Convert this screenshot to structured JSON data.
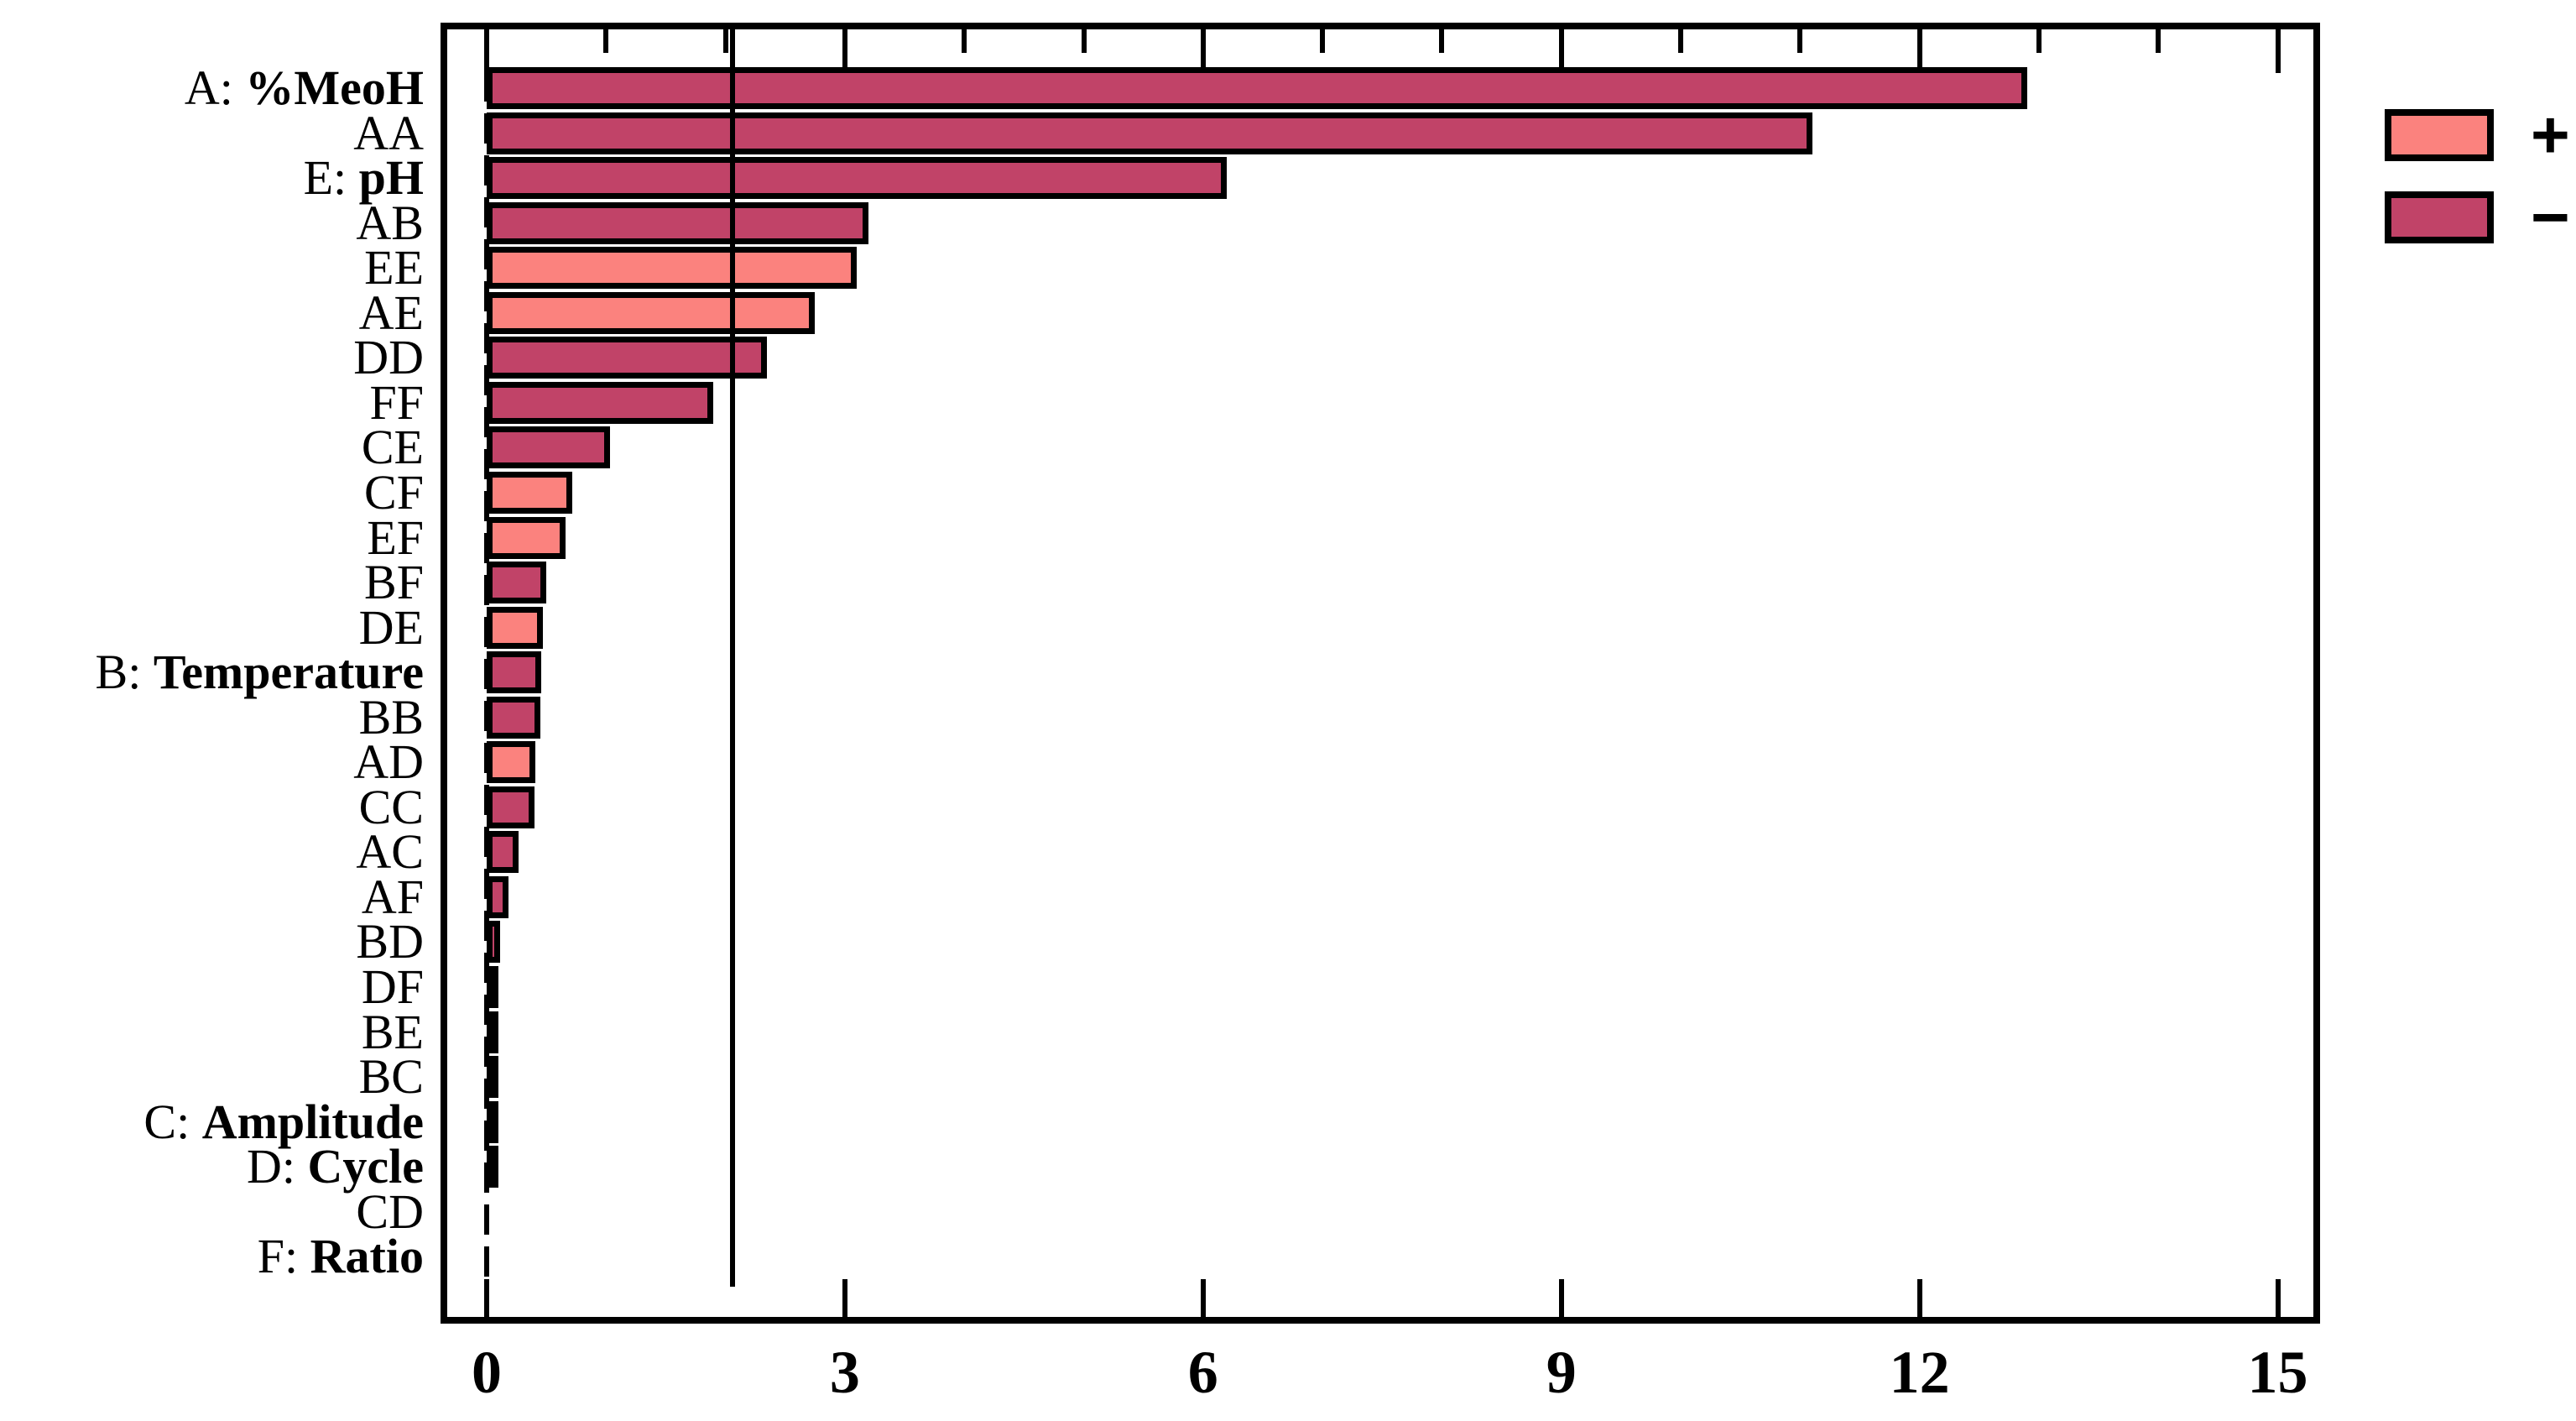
{
  "chart_data": {
    "type": "bar",
    "orientation": "horizontal",
    "title": "",
    "xlabel": "",
    "ylabel": "",
    "x_ticks": [
      "0",
      "3",
      "6",
      "9",
      "12",
      "15"
    ],
    "x_tick_values": [
      0,
      3,
      6,
      9,
      12,
      15
    ],
    "x_minor_tick_step": 1,
    "xlim": [
      -0.4,
      15.4
    ],
    "grid": false,
    "reference_line": {
      "value": 2.06,
      "style": "solid",
      "color": "#000000"
    },
    "zero_line": {
      "value": 0,
      "style": "dashed",
      "color": "#000000"
    },
    "legend": {
      "position": "top-right-outside",
      "entries": [
        {
          "label": "+",
          "sign": "positive",
          "color": "#FB827E"
        },
        {
          "label": "−",
          "sign": "negative",
          "color": "#C14368"
        }
      ]
    },
    "colors": {
      "positive": "#FB827E",
      "negative": "#C14368",
      "border": "#000000"
    },
    "bars": [
      {
        "label": "A: %MeoH",
        "prefix": "A: ",
        "emph": "%MeoH",
        "value": 12.9,
        "sign": "negative"
      },
      {
        "label": "AA",
        "prefix": "AA",
        "emph": "",
        "value": 11.1,
        "sign": "negative"
      },
      {
        "label": "E: pH",
        "prefix": "E: ",
        "emph": "pH",
        "value": 6.2,
        "sign": "negative"
      },
      {
        "label": "AB",
        "prefix": "AB",
        "emph": "",
        "value": 3.2,
        "sign": "negative"
      },
      {
        "label": "EE",
        "prefix": "EE",
        "emph": "",
        "value": 3.1,
        "sign": "positive"
      },
      {
        "label": "AE",
        "prefix": "AE",
        "emph": "",
        "value": 2.75,
        "sign": "positive"
      },
      {
        "label": "DD",
        "prefix": "DD",
        "emph": "",
        "value": 2.35,
        "sign": "negative"
      },
      {
        "label": "FF",
        "prefix": "FF",
        "emph": "",
        "value": 1.9,
        "sign": "negative"
      },
      {
        "label": "CE",
        "prefix": "CE",
        "emph": "",
        "value": 1.03,
        "sign": "negative"
      },
      {
        "label": "CF",
        "prefix": "CF",
        "emph": "",
        "value": 0.72,
        "sign": "positive"
      },
      {
        "label": "EF",
        "prefix": "EF",
        "emph": "",
        "value": 0.66,
        "sign": "positive"
      },
      {
        "label": "BF",
        "prefix": "BF",
        "emph": "",
        "value": 0.5,
        "sign": "negative"
      },
      {
        "label": "DE",
        "prefix": "DE",
        "emph": "",
        "value": 0.47,
        "sign": "positive"
      },
      {
        "label": "B: Temperature",
        "prefix": "B: ",
        "emph": "Temperature",
        "value": 0.46,
        "sign": "negative"
      },
      {
        "label": "BB",
        "prefix": "BB",
        "emph": "",
        "value": 0.45,
        "sign": "negative"
      },
      {
        "label": "AD",
        "prefix": "AD",
        "emph": "",
        "value": 0.41,
        "sign": "positive"
      },
      {
        "label": "CC",
        "prefix": "CC",
        "emph": "",
        "value": 0.4,
        "sign": "negative"
      },
      {
        "label": "AC",
        "prefix": "AC",
        "emph": "",
        "value": 0.27,
        "sign": "negative"
      },
      {
        "label": "AF",
        "prefix": "AF",
        "emph": "",
        "value": 0.18,
        "sign": "negative"
      },
      {
        "label": "BD",
        "prefix": "BD",
        "emph": "",
        "value": 0.11,
        "sign": "negative"
      },
      {
        "label": "DF",
        "prefix": "DF",
        "emph": "",
        "value": 0.1,
        "sign": "negative"
      },
      {
        "label": "BE",
        "prefix": "BE",
        "emph": "",
        "value": 0.06,
        "sign": "positive"
      },
      {
        "label": "BC",
        "prefix": "BC",
        "emph": "",
        "value": 0.055,
        "sign": "negative"
      },
      {
        "label": "C: Amplitude",
        "prefix": "C: ",
        "emph": "Amplitude",
        "value": 0.05,
        "sign": "negative"
      },
      {
        "label": "D: Cycle",
        "prefix": "D: ",
        "emph": "Cycle",
        "value": 0.03,
        "sign": "negative"
      },
      {
        "label": "CD",
        "prefix": "CD",
        "emph": "",
        "value": 0.008,
        "sign": "negative"
      },
      {
        "label": "F: Ratio",
        "prefix": "F: ",
        "emph": "Ratio",
        "value": 0.005,
        "sign": "negative"
      }
    ]
  }
}
